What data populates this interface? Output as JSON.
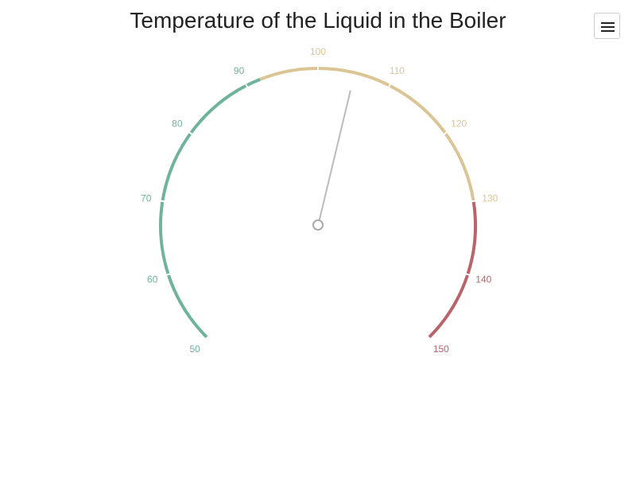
{
  "chart_data": {
    "type": "gauge",
    "title": "Temperature of the Liquid in the Boiler",
    "min": 50,
    "max": 150,
    "value": 105,
    "ticks": [
      50,
      60,
      70,
      80,
      90,
      100,
      110,
      120,
      130,
      140,
      150
    ],
    "tick_labels": [
      "50",
      "60",
      "70",
      "80",
      "90",
      "100",
      "110",
      "120",
      "130",
      "140",
      "150"
    ],
    "bands": [
      {
        "from": 50,
        "to": 92,
        "color": "#6fb39b"
      },
      {
        "from": 92,
        "to": 130,
        "color": "#dcc595"
      },
      {
        "from": 130,
        "to": 150,
        "color": "#b8646a"
      }
    ],
    "needle_color": "#bbbbbb"
  },
  "toolbar": {
    "menu_icon": "hamburger-menu-icon"
  }
}
